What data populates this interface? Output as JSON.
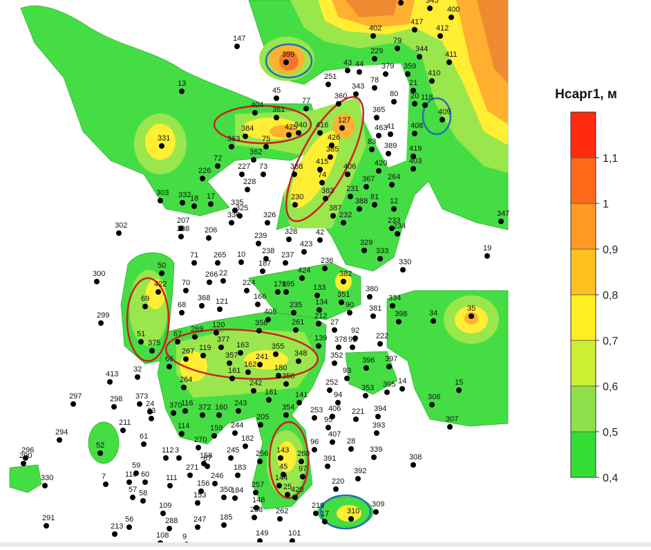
{
  "map": {
    "legend": {
      "title": "Нсарг1, м",
      "lim": [
        0.4,
        1.2
      ],
      "ticks": [
        {
          "value": 0.4,
          "label": "0,4"
        },
        {
          "value": 0.5,
          "label": "0,5"
        },
        {
          "value": 0.6,
          "label": "0,6"
        },
        {
          "value": 0.7,
          "label": "0,7"
        },
        {
          "value": 0.8,
          "label": "0,8"
        },
        {
          "value": 0.9,
          "label": "0,9"
        },
        {
          "value": 1,
          "label": "1"
        },
        {
          "value": 1.1,
          "label": "1,1"
        }
      ],
      "colors": [
        "#33dd33",
        "#8fe04a",
        "#ccee33",
        "#ffee22",
        "#ffc020",
        "#ff9922",
        "#ff6a1a",
        "#ff2a10"
      ]
    },
    "wells": [
      "147",
      "399",
      "402",
      "229",
      "79",
      "345",
      "400",
      "401",
      "417",
      "412",
      "344",
      "411",
      "43",
      "44",
      "379",
      "359",
      "78",
      "251",
      "343",
      "410",
      "21",
      "80",
      "118",
      "20",
      "409",
      "45",
      "77",
      "360",
      "365",
      "13",
      "404",
      "361",
      "384",
      "425",
      "340",
      "416",
      "127",
      "463",
      "41",
      "408",
      "331",
      "363",
      "75",
      "426",
      "83",
      "389",
      "419",
      "362",
      "385",
      "415",
      "72",
      "227",
      "73",
      "388",
      "406",
      "420",
      "403",
      "226",
      "228",
      "74",
      "367",
      "264",
      "303",
      "332",
      "18",
      "17",
      "335",
      "325",
      "230",
      "383",
      "231",
      "81",
      "12",
      "388",
      "387",
      "232",
      "336",
      "326",
      "207",
      "208",
      "206",
      "302",
      "347",
      "233",
      "234",
      "328",
      "42",
      "239",
      "329",
      "423",
      "238",
      "333",
      "19",
      "71",
      "265",
      "10",
      "237",
      "330",
      "236",
      "300",
      "50",
      "187",
      "424",
      "266",
      "22",
      "382",
      "70",
      "224",
      "176",
      "195",
      "133",
      "380",
      "422",
      "351",
      "334",
      "69",
      "368",
      "121",
      "166",
      "134",
      "90",
      "381",
      "68",
      "398",
      "34",
      "35",
      "299",
      "405",
      "235",
      "27",
      "92",
      "358",
      "120",
      "261",
      "212",
      "51",
      "375",
      "377",
      "139",
      "378",
      "91",
      "222",
      "163",
      "355",
      "348",
      "352",
      "269",
      "67",
      "119",
      "267",
      "357",
      "241",
      "396",
      "397",
      "66",
      "162",
      "180",
      "93",
      "161",
      "32",
      "413",
      "350",
      "242",
      "14",
      "15",
      "252",
      "395",
      "264",
      "353",
      "181",
      "141",
      "373",
      "94",
      "297",
      "298",
      "306",
      "116",
      "372",
      "160",
      "243",
      "370",
      "354",
      "406",
      "221",
      "394",
      "253",
      "24",
      "63",
      "211",
      "95",
      "205",
      "244",
      "114",
      "307",
      "393",
      "159",
      "294",
      "407",
      "28",
      "96",
      "182",
      "270",
      "61",
      "52",
      "339",
      "143",
      "260",
      "245",
      "256",
      "296",
      "290",
      "112",
      "3",
      "158",
      "87",
      "391",
      "308",
      "271",
      "59",
      "183",
      "45",
      "97",
      "392",
      "110",
      "60",
      "7",
      "111",
      "246",
      "156",
      "144",
      "257",
      "220",
      "330",
      "57",
      "58",
      "153",
      "350",
      "184",
      "25",
      "420",
      "291",
      "109",
      "148",
      "219",
      "309",
      "17",
      "310",
      "262",
      "288",
      "247",
      "185",
      "258",
      "56",
      "213",
      "149",
      "101",
      "108",
      "9"
    ]
  }
}
